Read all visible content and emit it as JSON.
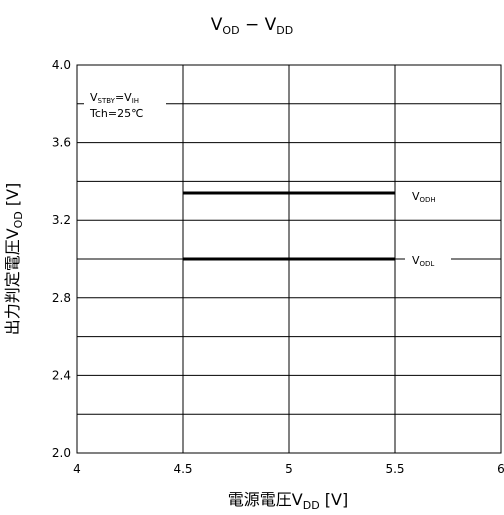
{
  "chart_data": {
    "type": "line",
    "title_main": "V",
    "title_sub1": "OD",
    "title_dash": " − V",
    "title_sub2": "DD",
    "xlabel_main": "電源電圧V",
    "xlabel_sub": "DD",
    "xlabel_unit": " [V]",
    "ylabel_main": "出力判定電圧V",
    "ylabel_sub": "OD",
    "ylabel_unit": " [V]",
    "xlim": [
      4,
      6
    ],
    "ylim": [
      2.0,
      4.0
    ],
    "x_ticks": [
      4,
      4.5,
      5,
      5.5,
      6
    ],
    "x_tick_labels": [
      "4",
      "4.5",
      "5",
      "5.5",
      "6"
    ],
    "y_ticks": [
      2.0,
      2.4,
      2.8,
      3.2,
      3.6,
      4.0
    ],
    "y_tick_labels": [
      "2.0",
      "2.4",
      "2.8",
      "3.2",
      "3.6",
      "4.0"
    ],
    "y_gridlines": [
      2.0,
      2.2,
      2.4,
      2.6,
      2.8,
      3.0,
      3.2,
      3.4,
      3.6,
      3.8,
      4.0
    ],
    "x_gridlines": [
      4,
      4.5,
      5,
      5.5,
      6
    ],
    "grid": true,
    "series": [
      {
        "name_main": "V",
        "name_sub": "ODH",
        "x": [
          4.5,
          5.5
        ],
        "y": [
          3.34,
          3.34
        ]
      },
      {
        "name_main": "V",
        "name_sub": "ODL",
        "x": [
          4.5,
          5.5
        ],
        "y": [
          3.0,
          3.0
        ]
      }
    ],
    "annotation": {
      "line1_main": "V",
      "line1_sub1": "STBY",
      "line1_eq": "=V",
      "line1_sub2": "IH",
      "line2": "Tch=25℃"
    }
  }
}
